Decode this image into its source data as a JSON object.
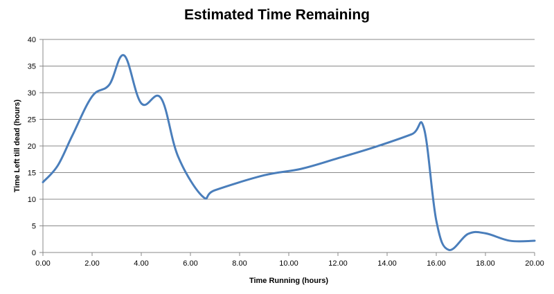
{
  "chart_data": {
    "type": "line",
    "title": "Estimated Time Remaining",
    "xlabel": "Time Running  (hours)",
    "ylabel": "Time Left till dead  (hours)",
    "xlim": [
      0,
      20
    ],
    "ylim": [
      0,
      40
    ],
    "x_ticks": [
      0,
      2,
      4,
      6,
      8,
      10,
      12,
      14,
      16,
      18,
      20
    ],
    "x_tick_labels": [
      "0.00",
      "2.00",
      "4.00",
      "6.00",
      "8.00",
      "10.00",
      "12.00",
      "14.00",
      "16.00",
      "18.00",
      "20.00"
    ],
    "y_ticks": [
      0,
      5,
      10,
      15,
      20,
      25,
      30,
      35,
      40
    ],
    "y_tick_labels": [
      "0",
      "5",
      "10",
      "15",
      "20",
      "25",
      "30",
      "35",
      "40"
    ],
    "grid": "horizontal",
    "legend": "none",
    "series": [
      {
        "color": "#4a7ebb",
        "x": [
          0.0,
          0.6,
          1.2,
          2.0,
          2.7,
          3.3,
          4.0,
          4.8,
          5.5,
          6.5,
          7.0,
          9.0,
          10.5,
          12.0,
          13.5,
          15.0,
          15.5,
          16.0,
          16.5,
          17.3,
          18.0,
          19.0,
          20.0
        ],
        "y": [
          13.2,
          16.3,
          22.0,
          29.3,
          31.5,
          37.0,
          28.0,
          29.0,
          18.0,
          10.5,
          11.7,
          14.5,
          15.7,
          17.7,
          19.8,
          22.2,
          23.3,
          6.0,
          0.5,
          3.5,
          3.6,
          2.2,
          2.2
        ]
      }
    ]
  }
}
